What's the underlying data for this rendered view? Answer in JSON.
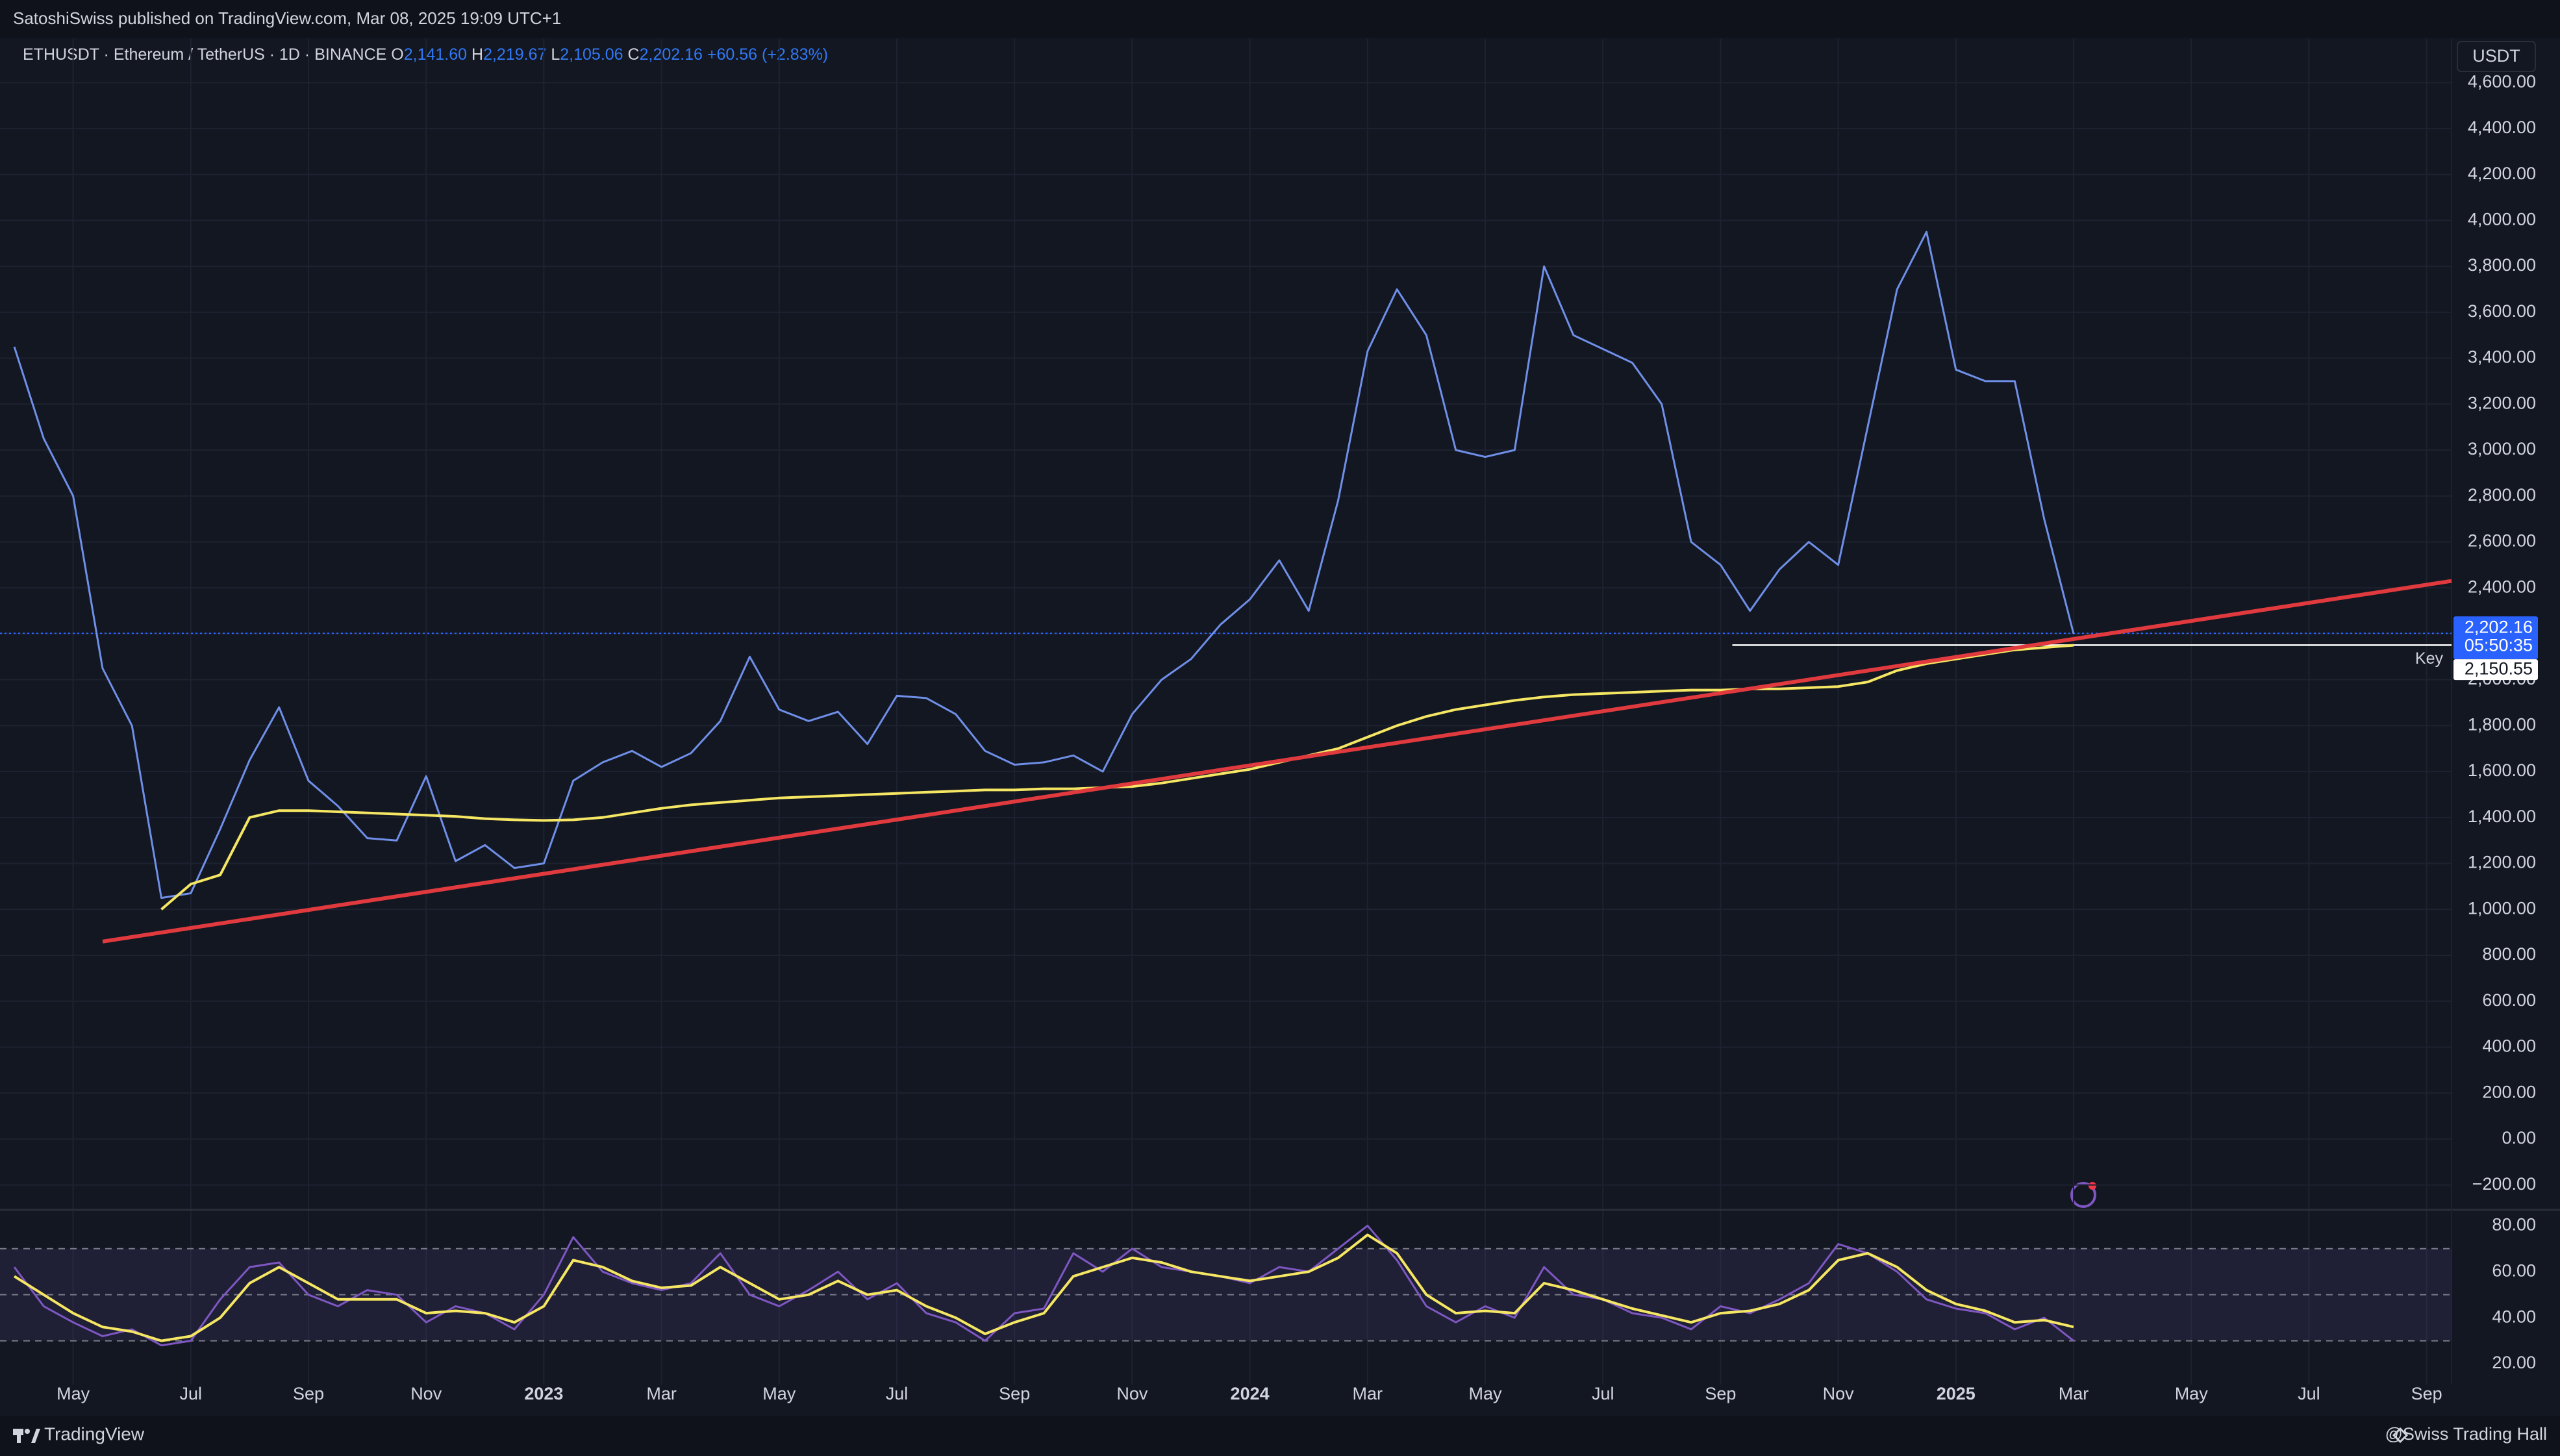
{
  "header": {
    "publisher": "SatoshiSwiss published on TradingView.com, Mar 08, 2025 19:09 UTC+1"
  },
  "footer": {
    "brand": "TradingView",
    "author": "@Swiss Trading Hall"
  },
  "chart_data": [
    {
      "type": "line",
      "title": "ETHUSDT · Ethereum / TetherUS · 1D · BINANCE",
      "ohlc": [
        {
          "name": "O",
          "label": "2,141.60"
        },
        {
          "name": "H",
          "label": "2,219.67"
        },
        {
          "name": "L",
          "label": "2,105.06"
        },
        {
          "name": "C",
          "label": "2,202.16"
        }
      ],
      "change": "+60.56 (+2.83%)",
      "axis_unit": "USDT",
      "categories": [
        null,
        null,
        "May",
        null,
        null,
        null,
        "Jul",
        null,
        null,
        null,
        "Sep",
        null,
        null,
        null,
        "Nov",
        null,
        null,
        null,
        "2023",
        null,
        null,
        null,
        "Mar",
        null,
        null,
        null,
        "May",
        null,
        null,
        null,
        "Jul",
        null,
        null,
        null,
        "Sep",
        null,
        null,
        null,
        "Nov",
        null,
        null,
        null,
        "2024",
        null,
        null,
        null,
        "Mar",
        null,
        null,
        null,
        "May",
        null,
        null,
        null,
        "Jul",
        null,
        null,
        null,
        "Sep",
        null,
        null,
        null,
        "Nov",
        null,
        null,
        null,
        "2025",
        null,
        null,
        null,
        "Mar",
        null,
        null,
        null,
        "May",
        null,
        null,
        null,
        "Jul",
        null,
        null,
        null,
        "Sep",
        null
      ],
      "series": [
        {
          "name": "ETHUSDT",
          "color": "#6f8fe8",
          "values": [
            3450,
            3050,
            2800,
            2050,
            1800,
            1050,
            1070,
            1350,
            1650,
            1880,
            1560,
            1450,
            1310,
            1300,
            1580,
            1210,
            1280,
            1180,
            1200,
            1560,
            1640,
            1690,
            1620,
            1680,
            1820,
            2100,
            1870,
            1820,
            1860,
            1720,
            1930,
            1920,
            1850,
            1690,
            1630,
            1640,
            1670,
            1600,
            1850,
            2000,
            2090,
            2240,
            2350,
            2520,
            2300,
            2780,
            3430,
            3700,
            3500,
            3000,
            2970,
            3000,
            3800,
            3500,
            3440,
            3380,
            3200,
            2600,
            2500,
            2300,
            2480,
            2600,
            2500,
            3100,
            3700,
            3950,
            3350,
            3300,
            3300,
            2700,
            2200,
            null,
            null,
            null,
            null,
            null,
            null,
            null,
            null,
            null,
            null,
            null,
            null,
            null
          ]
        },
        {
          "name": "MA 200",
          "color": "#f5e663",
          "values": [
            null,
            null,
            null,
            null,
            null,
            1000,
            1110,
            1150,
            1400,
            1430,
            1430,
            1425,
            1420,
            1415,
            1410,
            1405,
            1395,
            1390,
            1387,
            1390,
            1400,
            1420,
            1440,
            1455,
            1465,
            1475,
            1485,
            1490,
            1495,
            1500,
            1505,
            1510,
            1515,
            1520,
            1520,
            1525,
            1525,
            1530,
            1535,
            1550,
            1570,
            1590,
            1610,
            1640,
            1670,
            1700,
            1750,
            1800,
            1840,
            1870,
            1890,
            1910,
            1925,
            1935,
            1940,
            1945,
            1950,
            1955,
            1955,
            1960,
            1960,
            1965,
            1970,
            1990,
            2040,
            2070,
            2090,
            2110,
            2130,
            2140,
            2150,
            null,
            null,
            null,
            null,
            null,
            null,
            null,
            null,
            null,
            null,
            null,
            null,
            null
          ]
        }
      ],
      "trendline": {
        "color": "#e03a3e",
        "values": [
          860,
          2430
        ]
      },
      "last_price": {
        "value": 2202.16,
        "label": "2,202.16",
        "countdown": "05:50:35",
        "color": "#2962ff"
      },
      "key_level": {
        "name": "Key",
        "value": 2150.55,
        "label": "2,150.55",
        "color": "#ffffff"
      },
      "ylim": [
        -300,
        4790
      ],
      "yticks": [
        {
          "value": -200,
          "label": "−200.00"
        },
        {
          "value": 0,
          "label": "0.00"
        },
        {
          "value": 200,
          "label": "200.00"
        },
        {
          "value": 400,
          "label": "400.00"
        },
        {
          "value": 600,
          "label": "600.00"
        },
        {
          "value": 800,
          "label": "800.00"
        },
        {
          "value": 1000,
          "label": "1,000.00"
        },
        {
          "value": 1200,
          "label": "1,200.00"
        },
        {
          "value": 1400,
          "label": "1,400.00"
        },
        {
          "value": 1600,
          "label": "1,600.00"
        },
        {
          "value": 1800,
          "label": "1,800.00"
        },
        {
          "value": 2000,
          "label": "2,000.00"
        },
        {
          "value": 2200,
          "label": "2,200.00"
        },
        {
          "value": 2400,
          "label": "2,400.00"
        },
        {
          "value": 2600,
          "label": "2,600.00"
        },
        {
          "value": 2800,
          "label": "2,800.00"
        },
        {
          "value": 3000,
          "label": "3,000.00"
        },
        {
          "value": 3200,
          "label": "3,200.00"
        },
        {
          "value": 3400,
          "label": "3,400.00"
        },
        {
          "value": 3600,
          "label": "3,600.00"
        },
        {
          "value": 3800,
          "label": "3,800.00"
        },
        {
          "value": 4000,
          "label": "4,000.00"
        },
        {
          "value": 4200,
          "label": "4,200.00"
        },
        {
          "value": 4400,
          "label": "4,400.00"
        },
        {
          "value": 4600,
          "label": "4,600.00"
        }
      ],
      "grid": true
    },
    {
      "type": "line",
      "series": [
        {
          "name": "RSI",
          "color": "#7e57c2",
          "values": [
            62,
            45,
            38,
            32,
            35,
            28,
            30,
            48,
            62,
            64,
            50,
            45,
            52,
            50,
            38,
            45,
            42,
            35,
            50,
            75,
            60,
            55,
            52,
            55,
            68,
            50,
            45,
            52,
            60,
            48,
            55,
            42,
            38,
            30,
            42,
            44,
            68,
            60,
            70,
            62,
            60,
            58,
            55,
            62,
            60,
            70,
            80,
            65,
            45,
            38,
            45,
            40,
            62,
            50,
            48,
            42,
            40,
            35,
            45,
            42,
            48,
            55,
            72,
            68,
            60,
            48,
            44,
            42,
            35,
            40,
            30,
            null,
            null,
            null,
            null,
            null,
            null,
            null,
            null,
            null,
            null,
            null,
            null,
            null
          ]
        },
        {
          "name": "RSI MA",
          "color": "#f5e663",
          "values": [
            58,
            50,
            42,
            36,
            34,
            30,
            32,
            40,
            55,
            62,
            55,
            48,
            48,
            48,
            42,
            43,
            42,
            38,
            45,
            65,
            62,
            56,
            53,
            54,
            62,
            55,
            48,
            50,
            56,
            50,
            52,
            45,
            40,
            33,
            38,
            42,
            58,
            62,
            66,
            64,
            60,
            58,
            56,
            58,
            60,
            66,
            76,
            68,
            50,
            42,
            43,
            42,
            55,
            52,
            48,
            44,
            41,
            38,
            42,
            43,
            46,
            52,
            65,
            68,
            62,
            52,
            46,
            43,
            38,
            39,
            36,
            null,
            null,
            null,
            null,
            null,
            null,
            null,
            null,
            null,
            null,
            null,
            null,
            null
          ]
        }
      ],
      "levels": [
        70,
        50,
        30
      ],
      "ylim": [
        11,
        86
      ],
      "yticks": [
        {
          "value": 80,
          "label": "80.00"
        },
        {
          "value": 60,
          "label": "60.00"
        },
        {
          "value": 40,
          "label": "40.00"
        },
        {
          "value": 20,
          "label": "20.00"
        }
      ]
    }
  ]
}
